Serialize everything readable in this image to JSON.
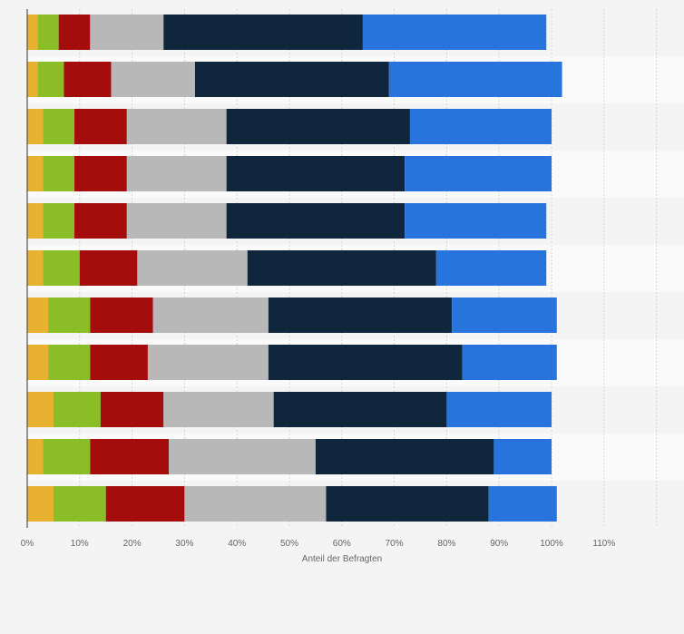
{
  "chart_data": {
    "type": "bar",
    "orientation": "horizontal",
    "stacked": true,
    "categories": [
      "",
      "",
      "",
      "",
      "",
      "",
      "",
      "",
      "",
      "",
      ""
    ],
    "series": [
      {
        "color": "#e8b130",
        "values": [
          2,
          2,
          3,
          3,
          3,
          3,
          4,
          4,
          5,
          3,
          5
        ]
      },
      {
        "color": "#8bbd26",
        "values": [
          4,
          5,
          6,
          6,
          6,
          7,
          8,
          8,
          9,
          9,
          10
        ]
      },
      {
        "color": "#a50d0d",
        "values": [
          6,
          9,
          10,
          10,
          10,
          11,
          12,
          11,
          12,
          15,
          15
        ]
      },
      {
        "color": "#b8b8b8",
        "values": [
          14,
          16,
          19,
          19,
          19,
          21,
          22,
          23,
          21,
          28,
          27
        ]
      },
      {
        "color": "#10263d",
        "values": [
          38,
          37,
          35,
          34,
          34,
          36,
          35,
          37,
          33,
          34,
          31
        ]
      },
      {
        "color": "#2774dc",
        "values": [
          35,
          33,
          27,
          28,
          27,
          21,
          20,
          18,
          20,
          11,
          13
        ]
      }
    ],
    "xlim": [
      0,
      120
    ],
    "x_ticks": [
      "0%",
      "10%",
      "20%",
      "30%",
      "40%",
      "50%",
      "60%",
      "70%",
      "80%",
      "90%",
      "100%",
      "110%"
    ],
    "xlabel": "Anteil der Befragten",
    "ylabel": "",
    "title": "",
    "grid": "vertical dashed",
    "legend": "none"
  }
}
